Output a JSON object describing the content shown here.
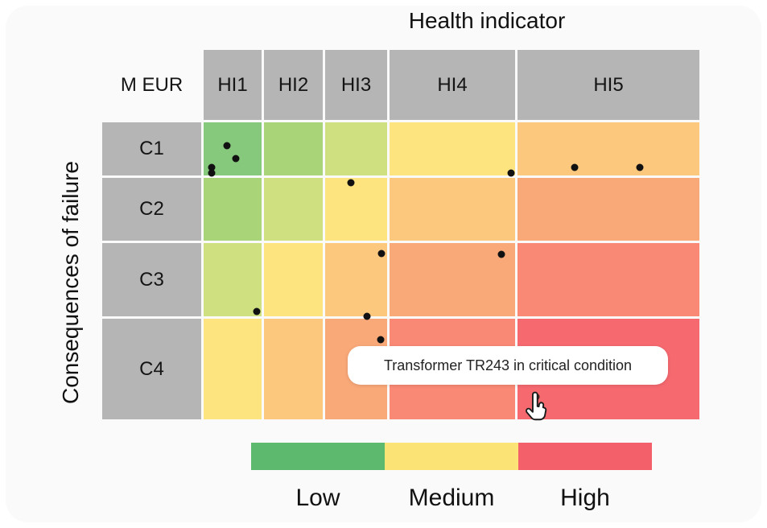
{
  "title": "Health indicator",
  "y_axis_label": "Consequences of failure",
  "matrix": {
    "corner_label": "M EUR",
    "column_headers": [
      "HI1",
      "HI2",
      "HI3",
      "HI4",
      "HI5"
    ],
    "row_headers": [
      "C1",
      "C2",
      "C3",
      "C4"
    ]
  },
  "tooltip": {
    "text": "Transformer TR243 in critical condition"
  },
  "legend": {
    "items": [
      {
        "label": "Low",
        "color": "#5cb96d"
      },
      {
        "label": "Medium",
        "color": "#fbe375"
      },
      {
        "label": "High",
        "color": "#f4606a"
      }
    ]
  },
  "colors": {
    "header_bg": "#b5b5b5",
    "card_bg": "#fafafa",
    "dot": "#111111",
    "selected_dot": "#4a2623",
    "risk_levels": [
      "#86c87c",
      "#a9d478",
      "#cfe081",
      "#fde47f",
      "#fcc87e",
      "#f9a878",
      "#f98875",
      "#f5696f"
    ]
  },
  "chart_data": {
    "type": "heatmap",
    "title": "Health indicator",
    "xlabel": "Health indicator",
    "ylabel": "Consequences of failure",
    "unit": "M EUR",
    "columns": [
      "HI1",
      "HI2",
      "HI3",
      "HI4",
      "HI5"
    ],
    "rows": [
      "C1",
      "C2",
      "C3",
      "C4"
    ],
    "risk_band_by_cell": [
      [
        0,
        1,
        2,
        3,
        4
      ],
      [
        1,
        2,
        3,
        4,
        5
      ],
      [
        2,
        3,
        4,
        5,
        6
      ],
      [
        3,
        4,
        5,
        6,
        7
      ]
    ],
    "legend_labels": [
      "Low",
      "Medium",
      "High"
    ],
    "points": [
      {
        "cell": "C1-HI1",
        "px": [
          282,
          181
        ]
      },
      {
        "cell": "C1-HI1",
        "px": [
          293,
          197
        ]
      },
      {
        "cell": "C1-HI1",
        "px": [
          263,
          208
        ]
      },
      {
        "cell": "C1-HI1",
        "px": [
          263,
          215
        ]
      },
      {
        "cell": "C1-HI4",
        "px": [
          635,
          215
        ]
      },
      {
        "cell": "C1-HI5",
        "px": [
          714,
          208
        ]
      },
      {
        "cell": "C1-HI5",
        "px": [
          795,
          208
        ]
      },
      {
        "cell": "C2-HI3",
        "px": [
          436,
          227
        ]
      },
      {
        "cell": "C3-HI3",
        "px": [
          474,
          315
        ]
      },
      {
        "cell": "C3-HI4",
        "px": [
          623,
          316
        ]
      },
      {
        "cell": "C3-HI1",
        "px": [
          319,
          387
        ]
      },
      {
        "cell": "C3-HI3",
        "px": [
          456,
          393
        ]
      },
      {
        "cell": "C4-HI3",
        "px": [
          473,
          422
        ]
      },
      {
        "cell": "C4-HI5",
        "px": [
          666,
          493
        ],
        "state": "selected",
        "note": "Transformer TR243 in critical condition"
      }
    ]
  }
}
